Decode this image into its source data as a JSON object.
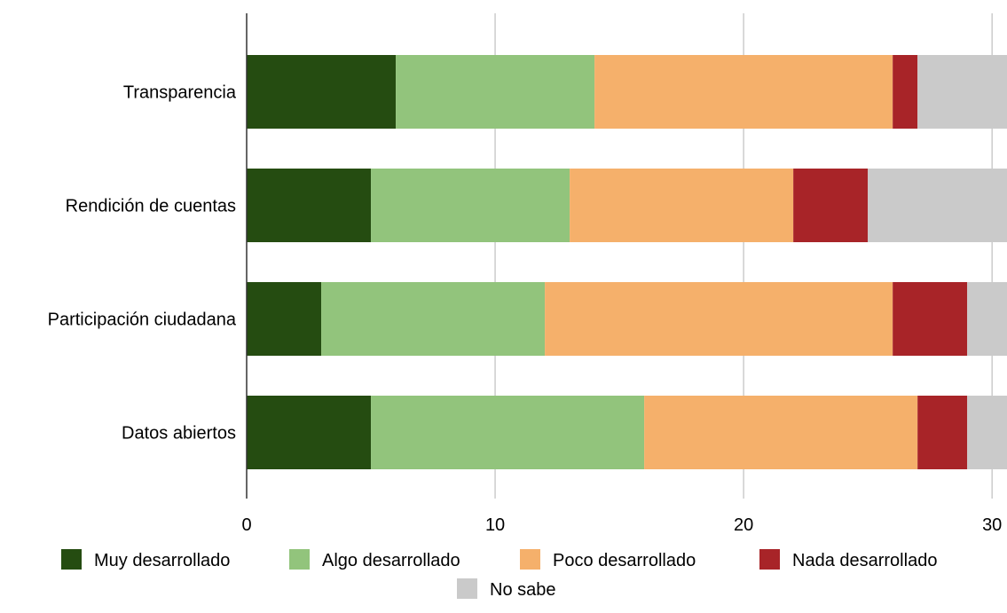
{
  "chart_data": {
    "type": "bar",
    "orientation": "horizontal",
    "stacked": true,
    "title": "",
    "xlabel": "",
    "ylabel": "",
    "categories": [
      "Transparencia",
      "Rendición de cuentas",
      "Participación ciudadana",
      "Datos abiertos"
    ],
    "series": [
      {
        "name": "Muy desarrollado",
        "color": "#254c11",
        "values": [
          6,
          5,
          3,
          5
        ]
      },
      {
        "name": "Algo desarrollado",
        "color": "#92c47c",
        "values": [
          8,
          8,
          9,
          11
        ]
      },
      {
        "name": "Poco desarrollado",
        "color": "#f5b06b",
        "values": [
          12,
          9,
          14,
          11
        ]
      },
      {
        "name": "Nada desarrollado",
        "color": "#a82428",
        "values": [
          1,
          3,
          3,
          2
        ]
      },
      {
        "name": "No sabe",
        "color": "#cacaca",
        "values": [
          4,
          6,
          2,
          2
        ]
      }
    ],
    "xlim": [
      0,
      30.6
    ],
    "xticks": [
      0,
      10,
      20,
      30
    ],
    "xtick_labels": [
      "0",
      "10",
      "20",
      "30"
    ],
    "grid": "vertical",
    "legend_position": "bottom"
  }
}
